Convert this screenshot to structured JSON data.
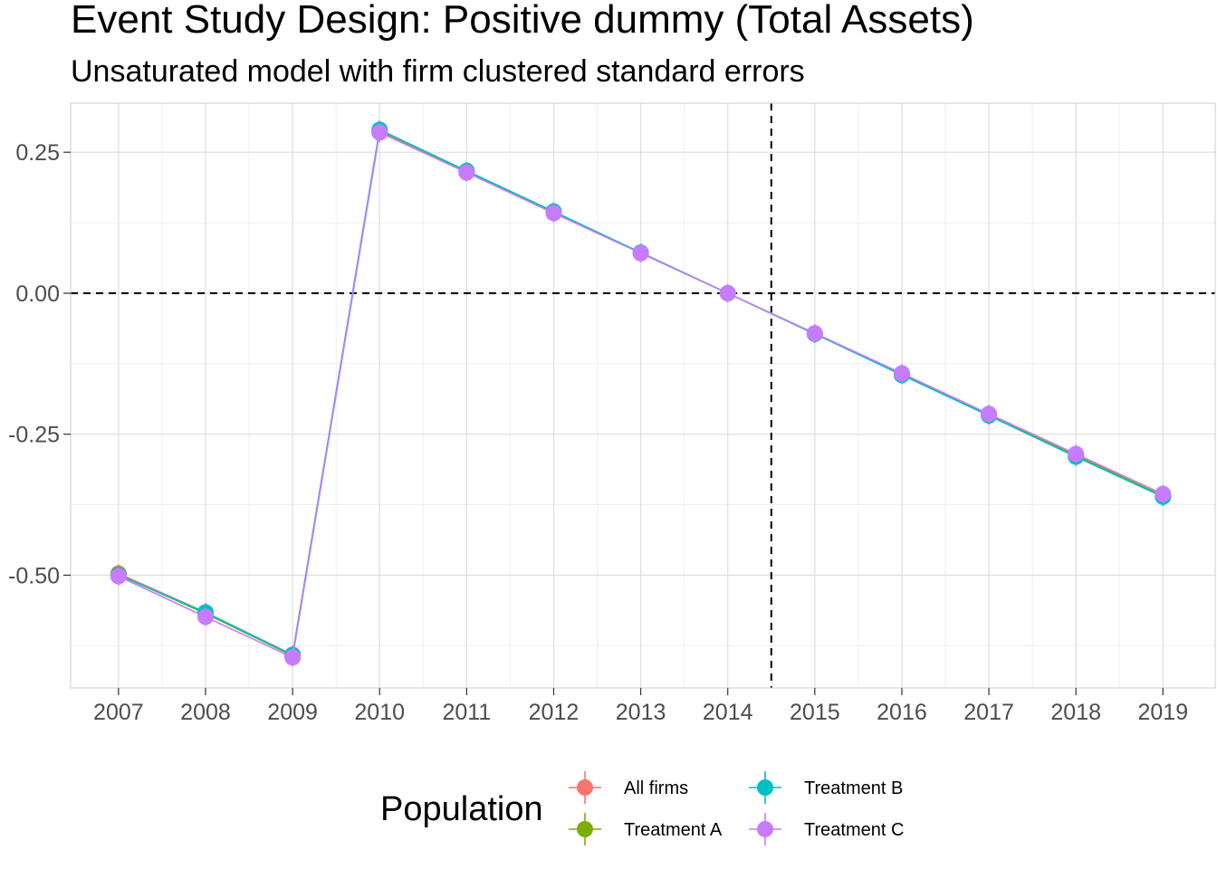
{
  "chart_data": {
    "type": "line",
    "title": "Event Study Design: Positive dummy (Total Assets)",
    "subtitle": "Unsaturated model with firm clustered standard errors",
    "xlabel": "",
    "ylabel": "",
    "x": [
      2007,
      2008,
      2009,
      2010,
      2011,
      2012,
      2013,
      2014,
      2015,
      2016,
      2017,
      2018,
      2019
    ],
    "xlim": [
      2006.45,
      2019.6
    ],
    "ylim": [
      -0.7,
      0.337
    ],
    "y_ticks": [
      0.25,
      0.0,
      -0.25,
      -0.5
    ],
    "y_tick_labels": [
      "0.25",
      "0.00",
      "-0.25",
      "-0.50"
    ],
    "reference_lines": {
      "x": 2014.5,
      "y": 0.0,
      "style": "dashed"
    },
    "grid": true,
    "legend": {
      "title": "Population",
      "position": "bottom"
    },
    "series": [
      {
        "name": "All firms",
        "color": "#F8766D",
        "values": [
          -0.497,
          -0.566,
          -0.641,
          0.288,
          0.216,
          0.144,
          0.072,
          0.0,
          -0.072,
          -0.144,
          -0.216,
          -0.288,
          -0.36
        ]
      },
      {
        "name": "Treatment A",
        "color": "#7CAE00",
        "values": [
          -0.499,
          -0.568,
          -0.643,
          0.286,
          0.215,
          0.143,
          0.071,
          0.0,
          -0.072,
          -0.143,
          -0.215,
          -0.287,
          -0.359
        ]
      },
      {
        "name": "Treatment B",
        "color": "#00BFC4",
        "values": [
          -0.5,
          -0.566,
          -0.642,
          0.29,
          0.217,
          0.145,
          0.072,
          0.0,
          -0.072,
          -0.145,
          -0.217,
          -0.29,
          -0.361
        ]
      },
      {
        "name": "Treatment C",
        "color": "#C77CFF",
        "values": [
          -0.502,
          -0.574,
          -0.646,
          0.285,
          0.214,
          0.142,
          0.071,
          0.0,
          -0.071,
          -0.142,
          -0.214,
          -0.285,
          -0.356
        ]
      }
    ]
  }
}
